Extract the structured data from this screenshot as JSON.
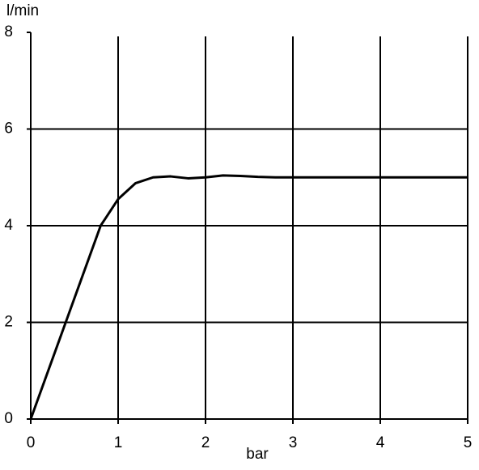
{
  "chart_data": {
    "type": "line",
    "y_label": "l/min",
    "x_label": "bar",
    "x": [
      0,
      0.2,
      0.4,
      0.6,
      0.8,
      1.0,
      1.2,
      1.4,
      1.6,
      1.8,
      2.0,
      2.2,
      2.4,
      2.6,
      2.8,
      3.0,
      4.0,
      5.0
    ],
    "series": [
      {
        "color": "#000000",
        "values": [
          0,
          1,
          2,
          3,
          4,
          4.55,
          4.88,
          5.0,
          5.02,
          4.98,
          5.0,
          5.04,
          5.03,
          5.01,
          5.0,
          5.0,
          5.0,
          5.0
        ]
      }
    ],
    "xlim": [
      0,
      5
    ],
    "xticks": [
      0,
      1,
      2,
      3,
      4,
      5
    ],
    "ylim": [
      0,
      8
    ],
    "yticks": [
      0,
      2,
      4,
      6,
      8
    ],
    "grid": true
  }
}
